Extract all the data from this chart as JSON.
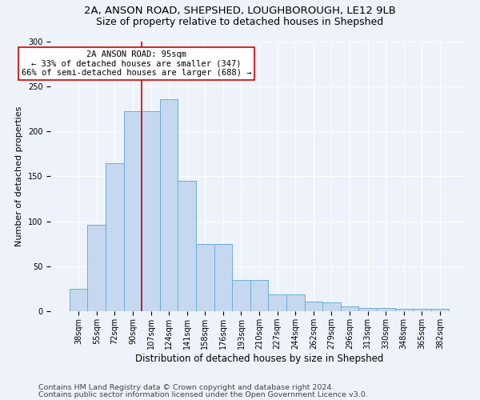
{
  "title1": "2A, ANSON ROAD, SHEPSHED, LOUGHBOROUGH, LE12 9LB",
  "title2": "Size of property relative to detached houses in Shepshed",
  "xlabel": "Distribution of detached houses by size in Shepshed",
  "ylabel": "Number of detached properties",
  "categories": [
    "38sqm",
    "55sqm",
    "72sqm",
    "90sqm",
    "107sqm",
    "124sqm",
    "141sqm",
    "158sqm",
    "176sqm",
    "193sqm",
    "210sqm",
    "227sqm",
    "244sqm",
    "262sqm",
    "279sqm",
    "296sqm",
    "313sqm",
    "330sqm",
    "348sqm",
    "365sqm",
    "382sqm"
  ],
  "values": [
    25,
    96,
    165,
    222,
    222,
    236,
    145,
    75,
    75,
    35,
    35,
    19,
    19,
    11,
    10,
    6,
    4,
    4,
    3,
    3,
    3
  ],
  "bar_color": "#c5d8f0",
  "bar_edge_color": "#6baed6",
  "vline_color": "#cc0000",
  "vline_x_index": 3.5,
  "annotation_text": "2A ANSON ROAD: 95sqm\n← 33% of detached houses are smaller (347)\n66% of semi-detached houses are larger (688) →",
  "annotation_box_color": "#ffffff",
  "annotation_box_edge": "#cc0000",
  "ylim": [
    0,
    300
  ],
  "yticks": [
    0,
    50,
    100,
    150,
    200,
    250,
    300
  ],
  "footer1": "Contains HM Land Registry data © Crown copyright and database right 2024.",
  "footer2": "Contains public sector information licensed under the Open Government Licence v3.0.",
  "bg_color": "#eef2fb",
  "grid_color": "#ffffff",
  "title1_fontsize": 9.5,
  "title2_fontsize": 9,
  "annot_fontsize": 7.5,
  "footer_fontsize": 6.8,
  "ylabel_fontsize": 8,
  "xlabel_fontsize": 8.5,
  "tick_fontsize": 7
}
